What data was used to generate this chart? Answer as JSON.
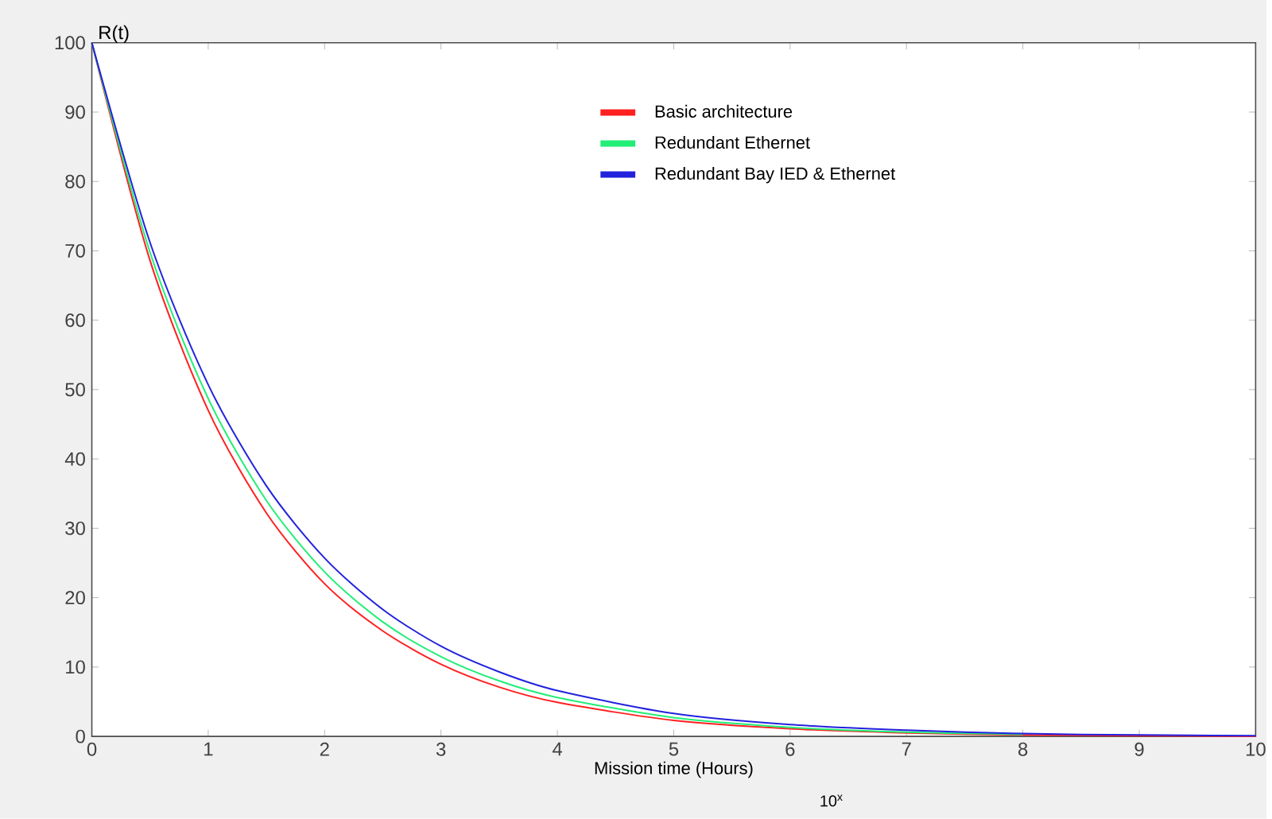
{
  "chart_data": {
    "type": "line",
    "xlabel": "Mission time (Hours)",
    "ylabel": "R(t)",
    "annotations": [
      "10$^{x}$"
    ],
    "x": [
      0,
      0.5,
      1,
      1.5,
      2,
      2.5,
      3,
      3.5,
      4,
      5,
      6,
      7,
      8,
      9,
      10
    ],
    "series": [
      {
        "name": "Basic architecture",
        "color": "#ff2020",
        "values": [
          100,
          68.6,
          47,
          32.2,
          22,
          15.2,
          10.4,
          7.1,
          4.9,
          2.3,
          1.1,
          0.5,
          0.2,
          0.1,
          0
        ]
      },
      {
        "name": "Redundant Ethernet",
        "color": "#22ee77",
        "values": [
          100,
          69.8,
          48.7,
          34,
          23.7,
          16.5,
          11.5,
          8.0,
          5.6,
          2.7,
          1.3,
          0.6,
          0.3,
          null,
          null
        ]
      },
      {
        "name": "Redundant Bay IED & Ethernet",
        "color": "#2222dd",
        "values": [
          100,
          71.2,
          50.7,
          36.1,
          25.7,
          18.3,
          13,
          9.3,
          6.6,
          3.3,
          1.7,
          0.9,
          0.4,
          0.2,
          0.1
        ]
      }
    ],
    "xlim": [
      0,
      10
    ],
    "ylim": [
      0,
      100
    ],
    "xticks": [
      0,
      1,
      2,
      3,
      4,
      5,
      6,
      7,
      8,
      9,
      10
    ],
    "yticks": [
      0,
      10,
      20,
      30,
      40,
      50,
      60,
      70,
      80,
      90,
      100
    ],
    "grid": false,
    "legend": "top right",
    "marker": "none",
    "line_style": "solid"
  }
}
